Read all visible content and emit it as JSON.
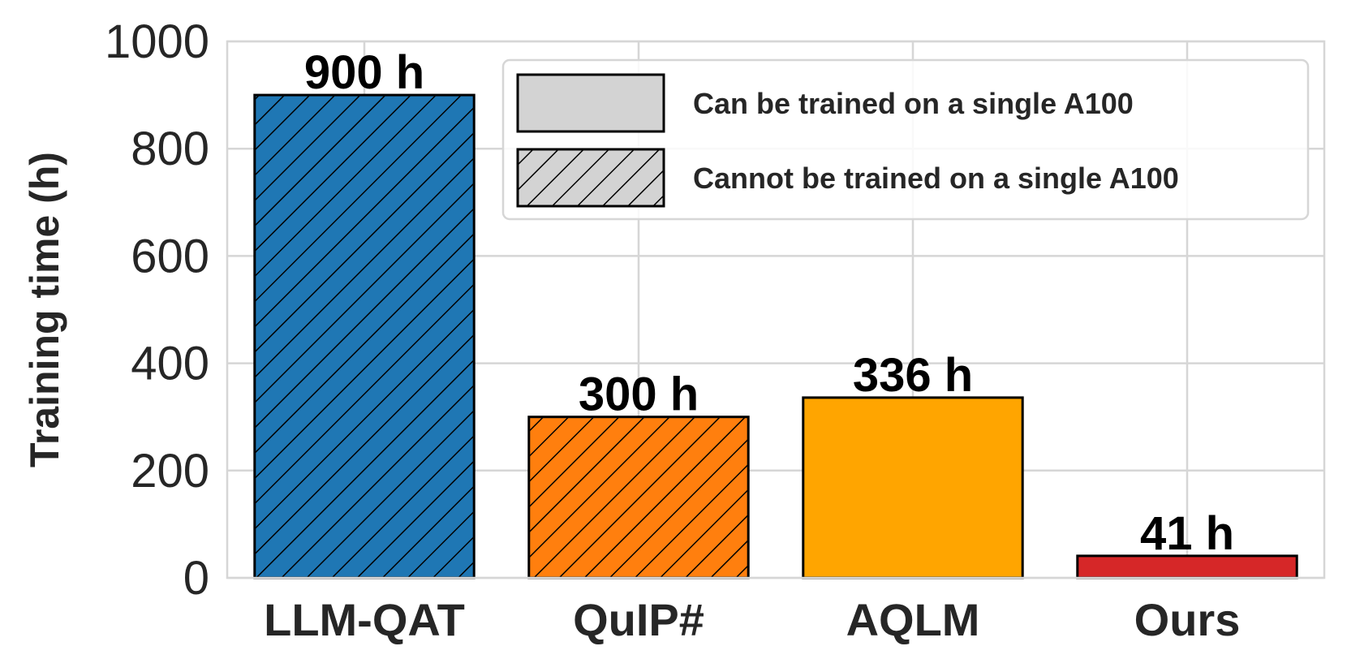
{
  "chart_data": {
    "type": "bar",
    "categories": [
      "LLM-QAT",
      "QuIP#",
      "AQLM",
      "Ours"
    ],
    "values": [
      900,
      300,
      336,
      41
    ],
    "data_labels": [
      "900 h",
      "300 h",
      "336 h",
      "41 h"
    ],
    "bar_colors": [
      "#1f77b4",
      "#ff7f0e",
      "#ffa500",
      "#d62728"
    ],
    "hatched": [
      true,
      true,
      false,
      false
    ],
    "title": "",
    "xlabel": "",
    "ylabel": "Training time (h)",
    "ylim": [
      0,
      1000
    ],
    "yticks": [
      0,
      200,
      400,
      600,
      800,
      1000
    ],
    "grid": true,
    "legend_position": "top-right",
    "legend": [
      {
        "label": "Can be trained on a single A100",
        "hatched": false,
        "color": "#d3d3d3"
      },
      {
        "label": "Cannot be trained on a single A100",
        "hatched": true,
        "color": "#d3d3d3"
      }
    ]
  }
}
